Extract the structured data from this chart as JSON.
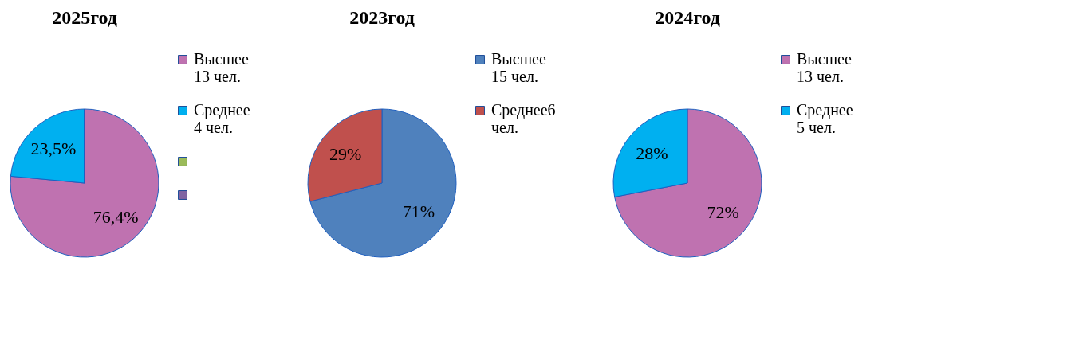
{
  "chart_data": [
    {
      "type": "pie",
      "title": "2025год",
      "categories": [
        "Высшее 13 чел.",
        "Среднее 4 чел.",
        null,
        null
      ],
      "values": [
        76.4,
        23.5,
        0,
        0
      ],
      "colors": [
        "#bf72b0",
        "#00b0f0",
        "#9bbb59",
        "#8064a2"
      ],
      "value_labels": [
        "76,4%",
        "23,5%",
        null,
        null
      ],
      "legend": "right"
    },
    {
      "type": "pie",
      "title": "2023год",
      "categories": [
        "Высшее 15 чел.",
        "Среднее6 чел."
      ],
      "values": [
        71,
        29
      ],
      "colors": [
        "#4f81bd",
        "#c0504d"
      ],
      "value_labels": [
        "71%",
        "29%"
      ],
      "legend": "right"
    },
    {
      "type": "pie",
      "title": "2024год",
      "categories": [
        "Высшее 13 чел.",
        "Среднее 5 чел."
      ],
      "values": [
        72,
        28
      ],
      "colors": [
        "#bf72b0",
        "#00b0f0"
      ],
      "value_labels": [
        "72%",
        "28%"
      ],
      "legend": "right"
    }
  ]
}
